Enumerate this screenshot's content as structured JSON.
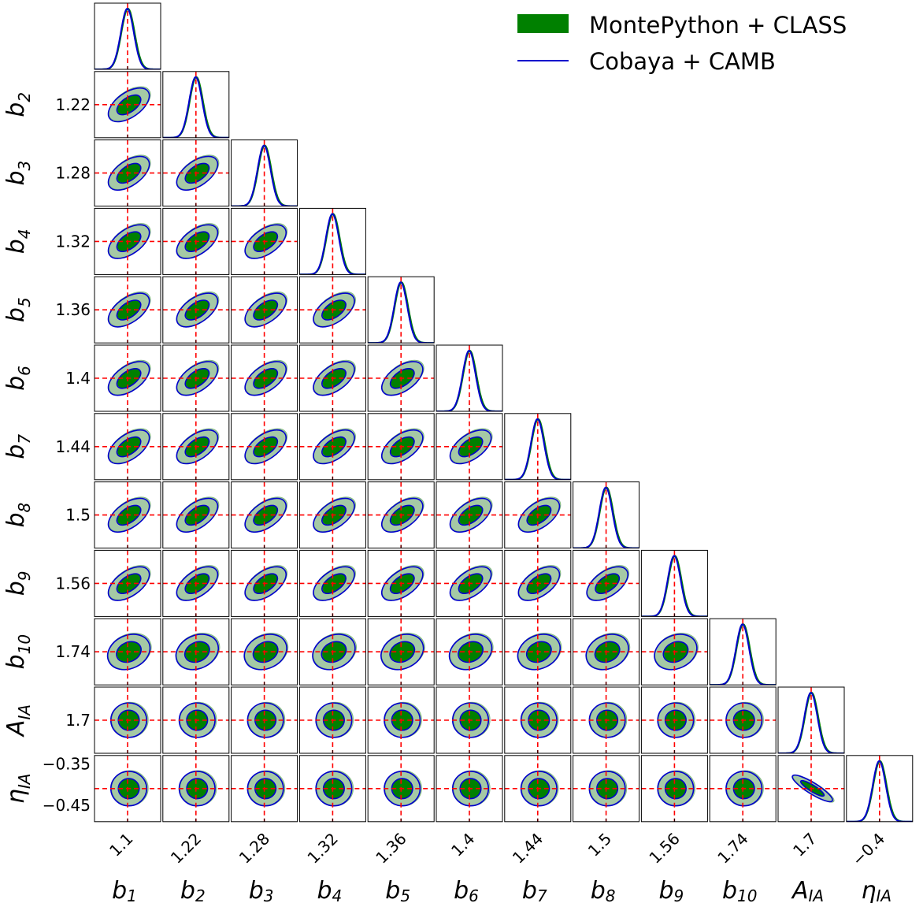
{
  "chart_data": {
    "type": "triangle-corner-plot",
    "params": [
      {
        "base": "b",
        "sub": "1",
        "fiducial": 1.1,
        "tick": "1.1",
        "range": [
          1.05,
          1.15
        ]
      },
      {
        "base": "b",
        "sub": "2",
        "fiducial": 1.22,
        "tick": "1.22",
        "range": [
          1.17,
          1.27
        ]
      },
      {
        "base": "b",
        "sub": "3",
        "fiducial": 1.275,
        "tick": "1.28",
        "range": [
          1.225,
          1.325
        ]
      },
      {
        "base": "b",
        "sub": "4",
        "fiducial": 1.32,
        "tick": "1.32",
        "range": [
          1.27,
          1.37
        ]
      },
      {
        "base": "b",
        "sub": "5",
        "fiducial": 1.36,
        "tick": "1.36",
        "range": [
          1.31,
          1.41
        ]
      },
      {
        "base": "b",
        "sub": "6",
        "fiducial": 1.4,
        "tick": "1.4",
        "range": [
          1.35,
          1.45
        ]
      },
      {
        "base": "b",
        "sub": "7",
        "fiducial": 1.44,
        "tick": "1.44",
        "range": [
          1.39,
          1.49
        ]
      },
      {
        "base": "b",
        "sub": "8",
        "fiducial": 1.5,
        "tick": "1.5",
        "range": [
          1.45,
          1.55
        ]
      },
      {
        "base": "b",
        "sub": "9",
        "fiducial": 1.56,
        "tick": "1.56",
        "range": [
          1.51,
          1.61
        ]
      },
      {
        "base": "b",
        "sub": "10",
        "fiducial": 1.74,
        "tick": "1.74",
        "range": [
          1.69,
          1.79
        ]
      },
      {
        "base": "A",
        "sub": "IA",
        "fiducial": 1.7,
        "tick": "1.7",
        "range": [
          1.55,
          1.85
        ]
      },
      {
        "base": "η",
        "sub": "IA",
        "fiducial": -0.41,
        "tick": "−0.4",
        "range": [
          -0.49,
          -0.33
        ]
      }
    ],
    "y_ticks_eta": [
      "−0.35",
      "−0.45"
    ],
    "y_tick_values_eta": [
      -0.35,
      -0.45
    ],
    "series": [
      {
        "name": "MontePython + CLASS",
        "style": "filled contours",
        "color": "#008000",
        "outer_color": "#a5c9a5"
      },
      {
        "name": "Cobaya + CAMB",
        "style": "line contours",
        "color": "#0000cc"
      }
    ],
    "fiducial_line_color": "#ff0000",
    "legend_position": "top-right"
  }
}
